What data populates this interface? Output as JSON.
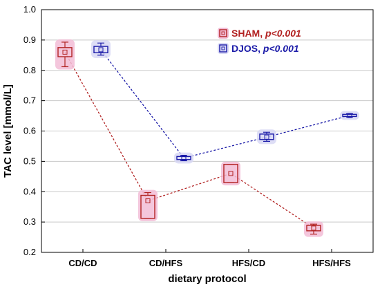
{
  "chart_data": {
    "type": "box",
    "categories": [
      "CD/CD",
      "CD/HFS",
      "HFS/CD",
      "HFS/HFS"
    ],
    "xlabel": "dietary protocol",
    "ylabel": "TAC level [mmol/L]",
    "ylim": [
      0.2,
      1.0
    ],
    "yticks": [
      "0.2",
      "0.3",
      "0.4",
      "0.5",
      "0.6",
      "0.7",
      "0.8",
      "0.9",
      "1.0"
    ],
    "grid": true,
    "legend_position": "top-right",
    "series": [
      {
        "name": "SHAM",
        "legend_suffix": "p<0.001",
        "color": "#b22222",
        "glow": "#f2bcd6",
        "mean": [
          0.86,
          0.37,
          0.46,
          0.28
        ],
        "box_low": [
          0.845,
          0.312,
          0.43,
          0.271
        ],
        "box_high": [
          0.875,
          0.388,
          0.49,
          0.289
        ],
        "whisker_low": [
          0.812,
          0.312,
          0.43,
          0.26
        ],
        "whisker_high": [
          0.893,
          0.397,
          0.49,
          0.293
        ]
      },
      {
        "name": "DJOS",
        "legend_suffix": "p<0.001",
        "color": "#1a1aa8",
        "glow": "#d8d8f4",
        "mean": [
          0.868,
          0.511,
          0.58,
          0.651
        ],
        "box_low": [
          0.858,
          0.506,
          0.572,
          0.648
        ],
        "box_high": [
          0.879,
          0.516,
          0.59,
          0.655
        ],
        "whisker_low": [
          0.85,
          0.502,
          0.566,
          0.646
        ],
        "whisker_high": [
          0.89,
          0.52,
          0.596,
          0.657
        ]
      }
    ]
  }
}
